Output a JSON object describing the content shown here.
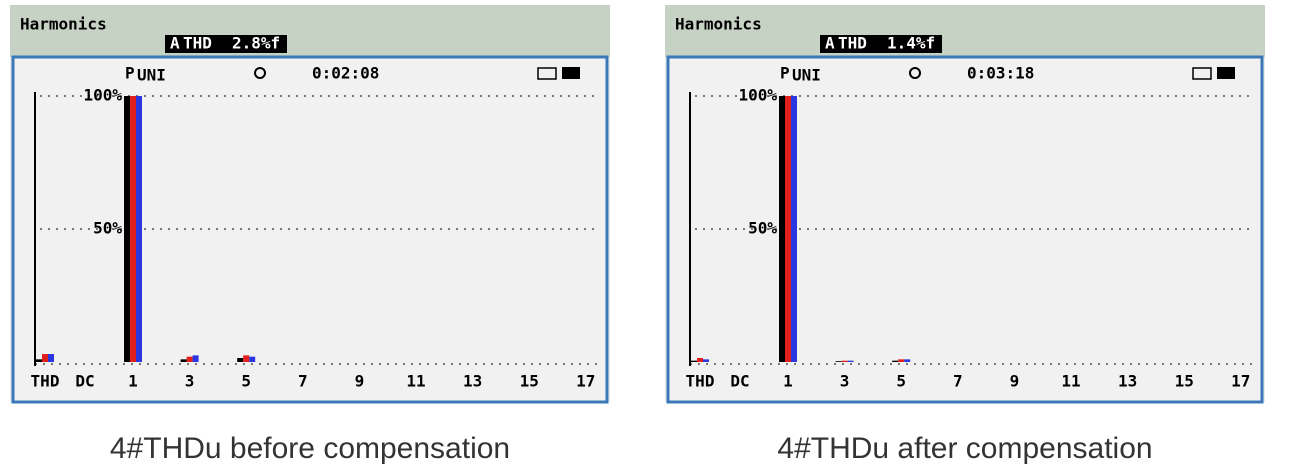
{
  "chart_data": [
    {
      "type": "bar",
      "title": "Harmonics",
      "phase": "A",
      "thd_label": "THD",
      "thd_value": "2.8%f",
      "mode": "P",
      "mode_sub": "UNI",
      "timer": "0:02:08",
      "caption": "4#THDu before compensation",
      "categories": [
        "THD",
        "DC",
        "1",
        null,
        "3",
        null,
        "5",
        null,
        "7",
        null,
        "9",
        null,
        "11",
        null,
        "13",
        null,
        "15",
        null,
        "17"
      ],
      "series": [
        {
          "color": "#000000",
          "values": [
            1,
            0,
            100,
            0,
            1,
            0,
            1.5,
            0,
            0,
            0,
            0,
            0,
            0,
            0,
            0,
            0,
            0,
            0,
            0
          ]
        },
        {
          "color": "#e0201c",
          "values": [
            3,
            0,
            100,
            0,
            2,
            0,
            2.5,
            0,
            0,
            0,
            0,
            0,
            0,
            0,
            0,
            0,
            0,
            0,
            0
          ]
        },
        {
          "color": "#2a36e0",
          "values": [
            3,
            0,
            100,
            0,
            2.5,
            0,
            2,
            0,
            0,
            0,
            0,
            0,
            0,
            0,
            0,
            0,
            0,
            0,
            0
          ]
        }
      ],
      "ylim": [
        0,
        100
      ],
      "yticks": [
        {
          "value": 50,
          "label": "50%"
        },
        {
          "value": 100,
          "label": "100%"
        }
      ],
      "grid": true
    },
    {
      "type": "bar",
      "title": "Harmonics",
      "phase": "A",
      "thd_label": "THD",
      "thd_value": "1.4%f",
      "mode": "P",
      "mode_sub": "UNI",
      "timer": "0:03:18",
      "caption": "4#THDu after compensation",
      "categories": [
        "THD",
        "DC",
        "1",
        null,
        "3",
        null,
        "5",
        null,
        "7",
        null,
        "9",
        null,
        "11",
        null,
        "13",
        null,
        "15",
        null,
        "17"
      ],
      "series": [
        {
          "color": "#000000",
          "values": [
            0.5,
            0,
            100,
            0,
            0.3,
            0,
            0.5,
            0,
            0,
            0,
            0,
            0,
            0,
            0,
            0,
            0,
            0,
            0,
            0
          ]
        },
        {
          "color": "#e0201c",
          "values": [
            1.5,
            0,
            100,
            0,
            0.5,
            0,
            1,
            0,
            0,
            0,
            0,
            0,
            0,
            0,
            0,
            0,
            0,
            0,
            0
          ]
        },
        {
          "color": "#2a36e0",
          "values": [
            1,
            0,
            100,
            0,
            0.5,
            0,
            1,
            0,
            0,
            0,
            0,
            0,
            0,
            0,
            0,
            0,
            0,
            0,
            0
          ]
        }
      ],
      "ylim": [
        0,
        100
      ],
      "yticks": [
        {
          "value": 50,
          "label": "50%"
        },
        {
          "value": 100,
          "label": "100%"
        }
      ],
      "grid": true
    }
  ]
}
